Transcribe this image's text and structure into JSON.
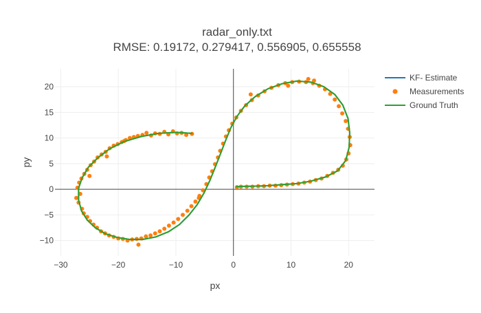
{
  "chart_data": {
    "type": "scatter",
    "title": "radar_only.txt",
    "subtitle": "RMSE: 0.19172, 0.279417, 0.556905, 0.655558",
    "xlabel": "px",
    "ylabel": "py",
    "xlim": [
      -31,
      24.5
    ],
    "ylim": [
      -13,
      23.5
    ],
    "xticks": [
      -30,
      -20,
      -10,
      0,
      10,
      20
    ],
    "xtick_labels": [
      "−30",
      "−20",
      "−10",
      "0",
      "10",
      "20"
    ],
    "yticks": [
      -10,
      -5,
      0,
      5,
      10,
      15,
      20
    ],
    "ytick_labels": [
      "−10",
      "−5",
      "0",
      "5",
      "10",
      "15",
      "20"
    ],
    "grid": true,
    "legend_position": "top-right",
    "series": [
      {
        "name": "KF- Estimate",
        "kind": "line",
        "color": "#1f77b4",
        "x": [
          -7.2,
          -10,
          -13,
          -16,
          -19,
          -21.5,
          -23.5,
          -25.2,
          -26.3,
          -26.9,
          -26.9,
          -26.4,
          -25.4,
          -24,
          -22.2,
          -20.2,
          -18,
          -15.8,
          -13.5,
          -11.3,
          -9.4,
          -7.7,
          -6.3,
          -5.1,
          -4.1,
          -3.2,
          -2.3,
          -1.4,
          -0.5,
          0.6,
          2,
          3.8,
          6,
          8.5,
          11,
          13.5,
          15.7,
          17.6,
          19,
          19.9,
          20.2,
          20.1,
          19.5,
          18.1,
          16,
          13.5,
          11,
          8.5,
          6,
          3.5,
          1.2,
          0.5
        ],
        "y": [
          10.9,
          11.1,
          10.9,
          10.3,
          9.3,
          7.9,
          6.2,
          4.3,
          2.2,
          0.2,
          -2.1,
          -4.2,
          -6,
          -7.5,
          -8.7,
          -9.4,
          -9.8,
          -9.8,
          -9.3,
          -8.3,
          -6.9,
          -5,
          -3,
          -0.7,
          1.7,
          4.2,
          6.8,
          9.4,
          11.9,
          14.2,
          16.3,
          18.1,
          19.6,
          20.6,
          21.1,
          20.9,
          20,
          18.5,
          16.4,
          13.8,
          11,
          8.2,
          5.6,
          3.6,
          2.4,
          1.6,
          1.1,
          0.9,
          0.7,
          0.6,
          0.55,
          0.5
        ],
        "line_width": 2
      },
      {
        "name": "Measurements",
        "kind": "markers",
        "color": "#ff7f0e",
        "x": [
          -7.2,
          -8.2,
          -9.0,
          -9.8,
          -10.5,
          -11.3,
          -12.0,
          -12.8,
          -13.6,
          -14.3,
          -15.1,
          -15.8,
          -16.6,
          -17.3,
          -18.0,
          -18.7,
          -19.4,
          -20.1,
          -20.8,
          -21.5,
          -22.2,
          -22.9,
          -23.6,
          -24.2,
          -24.8,
          -25.4,
          -25.9,
          -26.4,
          -26.8,
          -27.1,
          -26.6,
          -27.3,
          -26.9,
          -26.3,
          -26.0,
          -25.4,
          -24.9,
          -24.3,
          -23.7,
          -23.0,
          -22.3,
          -21.6,
          -20.8,
          -20.0,
          -19.2,
          -18.4,
          -17.6,
          -16.8,
          -16.0,
          -15.2,
          -14.4,
          -13.6,
          -12.8,
          -12.0,
          -11.2,
          -10.4,
          -9.6,
          -8.8,
          -8.0,
          -7.3,
          -6.6,
          -5.9,
          -5.3,
          -4.7,
          -4.2,
          -3.7,
          -3.2,
          -2.7,
          -2.3,
          -1.8,
          -1.3,
          -0.8,
          -0.2,
          0.5,
          1.3,
          2.2,
          3.2,
          4.3,
          5.4,
          6.6,
          7.8,
          9.0,
          10.2,
          11.4,
          12.6,
          13.8,
          14.9,
          15.9,
          16.8,
          17.6,
          18.3,
          18.9,
          19.5,
          19.9,
          20.2,
          20.3,
          20.0,
          19.6,
          19.0,
          18.2,
          17.3,
          16.3,
          15.3,
          14.3,
          13.3,
          12.3,
          11.3,
          10.3,
          9.3,
          8.3,
          7.3,
          6.3,
          5.3,
          4.3,
          3.3,
          2.3,
          1.3,
          0.6,
          14.0,
          9.5,
          -19.0,
          -22.0,
          -25.0,
          -16.5,
          -6.0,
          3.0,
          13.0
        ],
        "y": [
          10.8,
          10.6,
          11.0,
          10.9,
          11.3,
          10.7,
          11.2,
          10.8,
          10.9,
          10.5,
          11.0,
          10.6,
          10.4,
          10.2,
          10.0,
          9.6,
          9.2,
          8.8,
          8.5,
          8.0,
          7.3,
          6.8,
          6.2,
          5.4,
          4.7,
          3.8,
          3.0,
          2.1,
          1.3,
          0.3,
          -0.9,
          -1.7,
          -2.6,
          -3.8,
          -4.7,
          -5.4,
          -6.2,
          -6.9,
          -7.5,
          -8.2,
          -8.6,
          -9.0,
          -9.3,
          -9.6,
          -9.7,
          -10.0,
          -9.8,
          -9.7,
          -9.6,
          -9.2,
          -9.0,
          -8.6,
          -8.2,
          -7.7,
          -7.1,
          -6.5,
          -5.8,
          -5.0,
          -4.2,
          -3.3,
          -2.4,
          -1.3,
          -0.2,
          1.0,
          2.3,
          3.5,
          4.9,
          6.2,
          7.5,
          8.9,
          10.3,
          11.5,
          12.8,
          14.0,
          15.3,
          16.4,
          17.4,
          18.3,
          19.1,
          19.8,
          20.3,
          20.7,
          20.9,
          21.0,
          20.9,
          20.7,
          20.2,
          19.5,
          18.6,
          17.5,
          16.2,
          14.8,
          13.3,
          11.8,
          10.2,
          8.6,
          7.0,
          5.8,
          4.6,
          3.8,
          3.2,
          2.6,
          2.1,
          1.8,
          1.5,
          1.3,
          1.1,
          1.0,
          0.9,
          0.8,
          0.7,
          0.7,
          0.6,
          0.6,
          0.5,
          0.5,
          0.5,
          0.4,
          21.2,
          20.2,
          9.4,
          6.4,
          2.6,
          -10.8,
          -1.7,
          18.5,
          21.5
        ],
        "marker_size": 6
      },
      {
        "name": "Ground Truth",
        "kind": "line",
        "color": "#2ca02c",
        "x": [
          -7.2,
          -10,
          -13,
          -16,
          -19,
          -21.5,
          -23.5,
          -25.2,
          -26.3,
          -26.9,
          -26.9,
          -26.4,
          -25.4,
          -24,
          -22.2,
          -20.2,
          -18,
          -15.8,
          -13.5,
          -11.3,
          -9.4,
          -7.7,
          -6.3,
          -5.1,
          -4.1,
          -3.2,
          -2.3,
          -1.4,
          -0.5,
          0.6,
          2,
          3.8,
          6,
          8.5,
          11,
          13.5,
          15.7,
          17.6,
          19,
          19.9,
          20.2,
          20.1,
          19.5,
          18.1,
          16,
          13.5,
          11,
          8.5,
          6,
          3.5,
          1.2,
          0.5
        ],
        "y": [
          10.9,
          11.1,
          10.9,
          10.3,
          9.3,
          7.9,
          6.2,
          4.3,
          2.2,
          0.2,
          -2.1,
          -4.2,
          -6,
          -7.5,
          -8.7,
          -9.4,
          -9.8,
          -9.8,
          -9.3,
          -8.3,
          -6.9,
          -5,
          -3,
          -0.7,
          1.7,
          4.2,
          6.8,
          9.4,
          11.9,
          14.2,
          16.3,
          18.1,
          19.6,
          20.6,
          21.1,
          20.9,
          20,
          18.5,
          16.4,
          13.8,
          11,
          8.2,
          5.6,
          3.6,
          2.4,
          1.6,
          1.1,
          0.9,
          0.7,
          0.6,
          0.55,
          0.5
        ],
        "line_width": 2
      }
    ],
    "colors": {
      "axis_text": "#444444",
      "grid": "#eeeeee",
      "zero_line": "#444444"
    }
  }
}
